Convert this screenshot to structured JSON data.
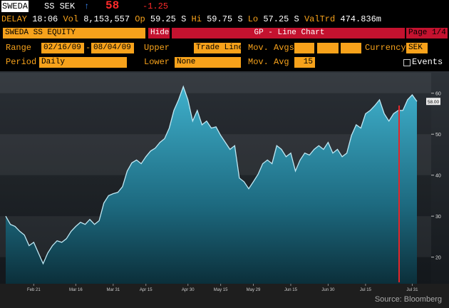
{
  "header": {
    "ticker": "SWEDA",
    "market": "SS SEK",
    "arrow": "↑",
    "price": "58",
    "change": "-1.25"
  },
  "status": [
    [
      "DELAY",
      "18:06"
    ],
    [
      "Vol",
      "8,153,557"
    ],
    [
      "Op",
      "59.25 S"
    ],
    [
      "Hi",
      "59.75 S"
    ],
    [
      "Lo",
      "57.25 S"
    ],
    [
      "ValTrd",
      "474.836m"
    ]
  ],
  "toolbar": {
    "security": "SWEDA SS EQUITY",
    "hide": "Hide",
    "function": "GP - Line Chart",
    "page": "Page 1/4"
  },
  "controls": {
    "range_label": "Range",
    "start": "02/16/09",
    "dash": "-",
    "end": "08/04/09",
    "upper_label": "Upper",
    "upper": "Trade Line",
    "movavgs_label": "Mov. Avgs",
    "currency_label": "Currency",
    "currency": "SEK",
    "period_label": "Period",
    "period": "Daily",
    "lower_label": "Lower",
    "lower": "None",
    "movavg_label": "Mov. Avg",
    "movavg": "15",
    "events": "Events"
  },
  "chart_data": {
    "type": "area",
    "source": "Source: Bloomberg",
    "last_label": "58.00",
    "color": "#bfe9f5",
    "categories": [
      null,
      null,
      null,
      null,
      null,
      null,
      "Feb 21",
      null,
      null,
      null,
      null,
      null,
      null,
      null,
      null,
      "Mar 16",
      null,
      null,
      null,
      null,
      null,
      null,
      null,
      "Mar 31",
      null,
      null,
      null,
      null,
      null,
      null,
      "Apr 15",
      null,
      null,
      null,
      null,
      null,
      null,
      null,
      null,
      "Apr 30",
      null,
      null,
      null,
      null,
      null,
      null,
      "May 15",
      null,
      null,
      null,
      null,
      null,
      null,
      "May 29",
      null,
      null,
      null,
      null,
      null,
      null,
      null,
      "Jun 15",
      null,
      null,
      null,
      null,
      null,
      null,
      null,
      "Jun 30",
      null,
      null,
      null,
      null,
      null,
      null,
      null,
      "Jul 15",
      null,
      null,
      null,
      null,
      null,
      null,
      null,
      null,
      null,
      "Jul 31",
      null
    ],
    "values": [
      30,
      28,
      27.5,
      26.3,
      25.4,
      22.8,
      23.6,
      21,
      18.4,
      21,
      22.8,
      24,
      23.6,
      24.5,
      26.3,
      27.5,
      28.5,
      28,
      29.2,
      28,
      28.9,
      33.2,
      35,
      35.5,
      35.8,
      37.2,
      41,
      43,
      43.7,
      42.8,
      44.5,
      45.9,
      46.6,
      48,
      48.9,
      51.5,
      55.8,
      58.4,
      61.6,
      58.4,
      53.2,
      55.8,
      52.3,
      53.2,
      51.5,
      51.8,
      49.7,
      48,
      46.3,
      47.2,
      39.3,
      38.4,
      36.7,
      38.4,
      40.2,
      42.8,
      43.7,
      42.8,
      47.2,
      46.3,
      44.5,
      45.4,
      41,
      43.7,
      45.4,
      44.9,
      46.3,
      47.2,
      46.3,
      48,
      45.4,
      46.3,
      44.5,
      45.4,
      49.7,
      52.3,
      51.5,
      55,
      55.8,
      57,
      58.4,
      55,
      53.2,
      55,
      55.8,
      55.8,
      58.4,
      59.6,
      58
    ],
    "ylim": [
      13.5,
      65
    ],
    "yticks": [
      20,
      30,
      40,
      50,
      60
    ]
  }
}
